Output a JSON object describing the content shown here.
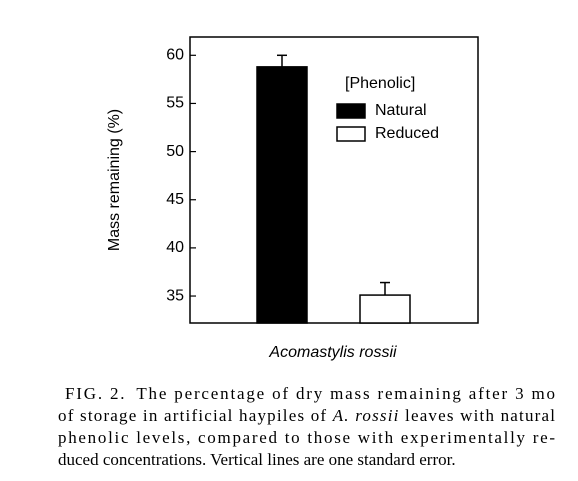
{
  "chart_data": {
    "type": "bar",
    "xlabel": "Acomastylis rossii",
    "ylabel": "Mass remaining (%)",
    "categories": [
      null
    ],
    "series": [
      {
        "name": "Natural",
        "color": "#000000",
        "values": [
          58.8
        ],
        "errors": [
          1.2
        ]
      },
      {
        "name": "Reduced",
        "color": "#ffffff",
        "values": [
          35.1
        ],
        "errors": [
          1.3
        ]
      }
    ],
    "ylim": [
      32.2,
      61.9
    ],
    "yticks": [
      35,
      40,
      45,
      50,
      55,
      60
    ],
    "legend_title": "[Phenolic]",
    "legend": "upper right"
  },
  "caption": {
    "lines": [
      [
        {
          "text": "FIG. 2.",
          "style": "smallcaps"
        },
        {
          "text": "The percentage of dry mass remaining after 3 mo",
          "style": "normal"
        }
      ],
      [
        {
          "text": "of storage in artificial haypiles of ",
          "style": "normal"
        },
        {
          "text": "A. rossii",
          "style": "italic"
        },
        {
          "text": " leaves with natural",
          "style": "normal"
        }
      ],
      [
        {
          "text": "phenolic levels, compared to those with experimentally re-",
          "style": "normal"
        }
      ],
      [
        {
          "text": "duced concentrations. Vertical lines are one standard error.",
          "style": "normal"
        }
      ]
    ]
  }
}
